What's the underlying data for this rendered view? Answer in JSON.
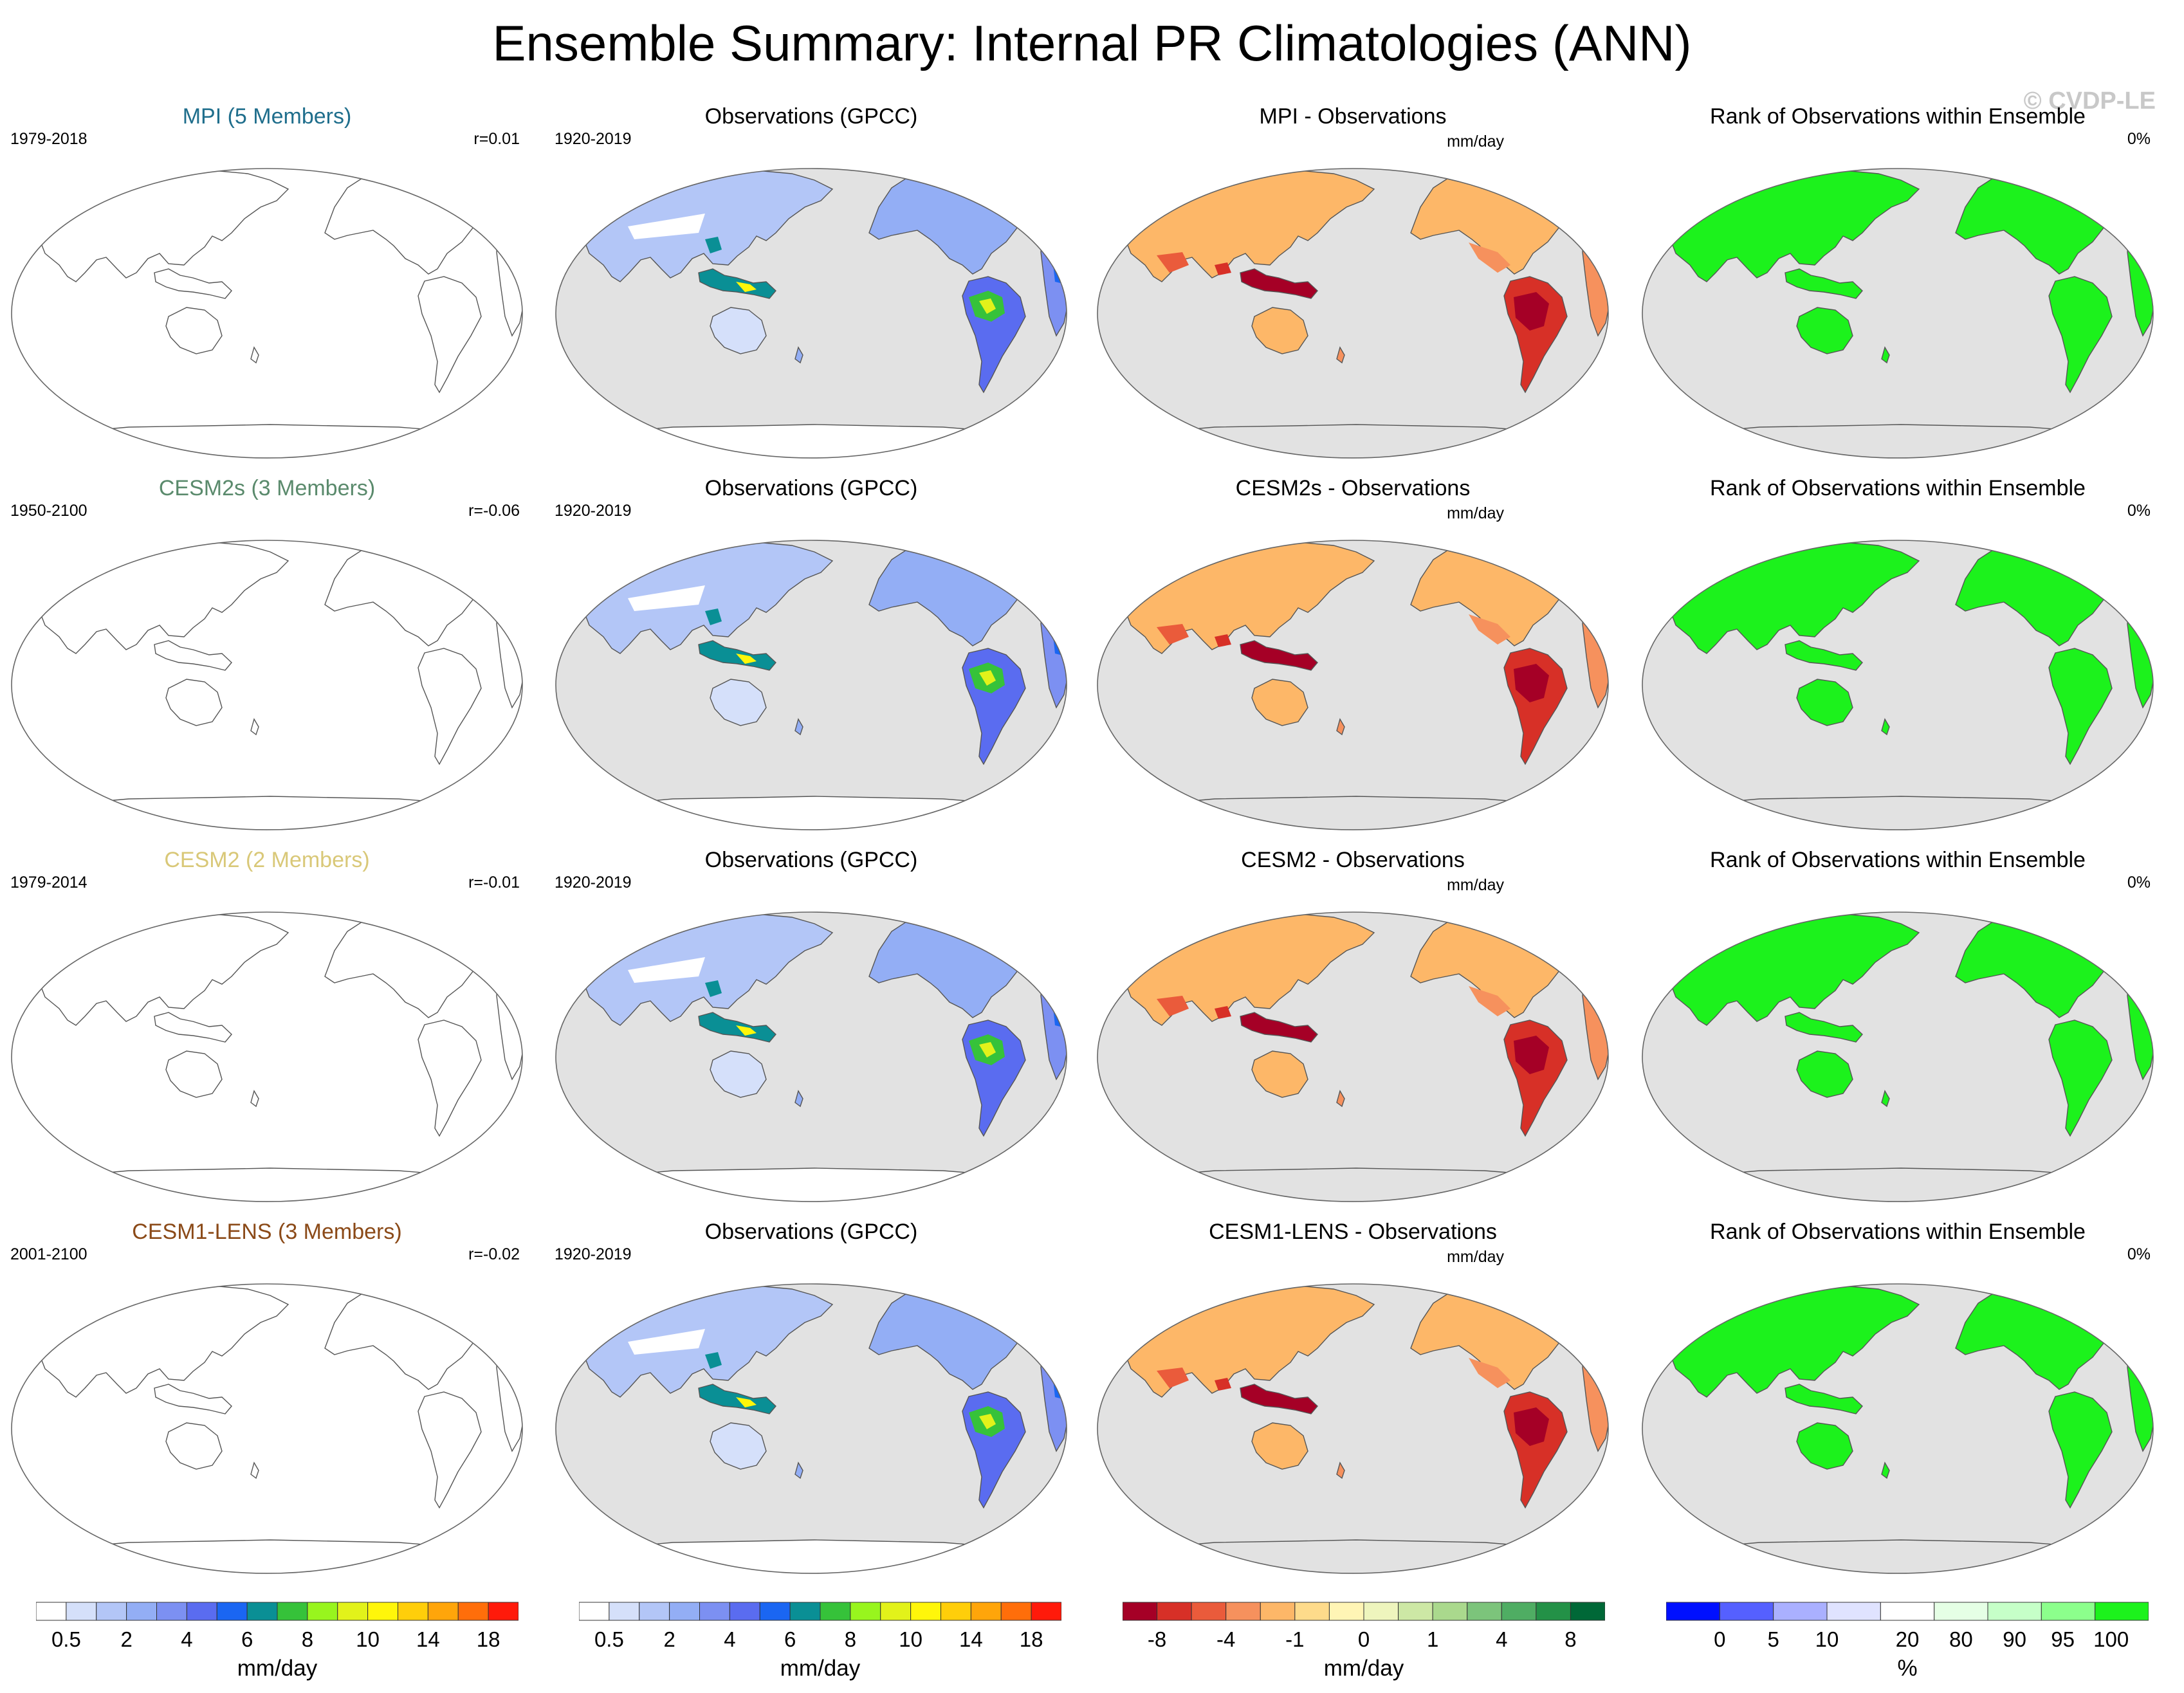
{
  "figure": {
    "title": "Ensemble Summary: Internal PR Climatologies (ANN)",
    "watermark": "© CVDP-LE"
  },
  "colors": {
    "land_fill_ocean": "#e2e2e2",
    "coast": "#555555",
    "obs_palette": [
      "#ffffff",
      "#d5e0fa",
      "#b3c6f7",
      "#93aef5",
      "#7c90f2",
      "#5a6cf0",
      "#1a66f2",
      "#0a8f95",
      "#36c23a",
      "#98f51e",
      "#e2f21a",
      "#fff60a",
      "#ffce0a",
      "#ffa50a",
      "#ff6e0a",
      "#ff1a0a"
    ],
    "diff_palette": [
      "#a50026",
      "#d73027",
      "#ea5b3b",
      "#f6915d",
      "#fdb768",
      "#fedb8b",
      "#fff5b5",
      "#eef5bd",
      "#cde8a5",
      "#aad98d",
      "#7cc47b",
      "#4fad63",
      "#239147",
      "#006837"
    ],
    "rank_palette": [
      "#0010ff",
      "#5560ff",
      "#aab0ff",
      "#e0e3ff",
      "#ffffff",
      "#e5ffe5",
      "#c6ffc8",
      "#8cff8c",
      "#1cf21c"
    ]
  },
  "rows": [
    {
      "model": {
        "title": "MPI (5 Members)",
        "title_color": "#1f6e8c",
        "years": "1979-2018",
        "r": "r=0.01"
      },
      "obs": {
        "title": "Observations (GPCC)",
        "years": "1920-2019"
      },
      "diff": {
        "title": "MPI - Observations",
        "units": "mm/day"
      },
      "rank": {
        "title": "Rank of Observations within Ensemble",
        "pct": "0%"
      }
    },
    {
      "model": {
        "title": "CESM2s (3 Members)",
        "title_color": "#5a8a6c",
        "years": "1950-2100",
        "r": "r=-0.06"
      },
      "obs": {
        "title": "Observations (GPCC)",
        "years": "1920-2019"
      },
      "diff": {
        "title": "CESM2s - Observations",
        "units": "mm/day"
      },
      "rank": {
        "title": "Rank of Observations within Ensemble",
        "pct": "0%"
      }
    },
    {
      "model": {
        "title": "CESM2 (2 Members)",
        "title_color": "#d9c878",
        "years": "1979-2014",
        "r": "r=-0.01"
      },
      "obs": {
        "title": "Observations (GPCC)",
        "years": "1920-2019"
      },
      "diff": {
        "title": "CESM2 - Observations",
        "units": "mm/day"
      },
      "rank": {
        "title": "Rank of Observations within Ensemble",
        "pct": "0%"
      }
    },
    {
      "model": {
        "title": "CESM1-LENS (3 Members)",
        "title_color": "#8b4a18",
        "years": "2001-2100",
        "r": "r=-0.02"
      },
      "obs": {
        "title": "Observations (GPCC)",
        "years": "1920-2019"
      },
      "diff": {
        "title": "CESM1-LENS - Observations",
        "units": "mm/day"
      },
      "rank": {
        "title": "Rank of Observations within Ensemble",
        "pct": "0%"
      }
    }
  ],
  "colorbars": [
    {
      "units": "mm/day",
      "labels": [
        "0.5",
        "2",
        "4",
        "6",
        "8",
        "10",
        "14",
        "18"
      ]
    },
    {
      "units": "mm/day",
      "labels": [
        "0.5",
        "2",
        "4",
        "6",
        "8",
        "10",
        "14",
        "18"
      ]
    },
    {
      "units": "mm/day",
      "labels": [
        "-8",
        "-4",
        "-1",
        "0",
        "1",
        "4",
        "8"
      ]
    },
    {
      "units": "%",
      "labels": [
        "0",
        "5",
        "10",
        "20",
        "80",
        "90",
        "95",
        "100"
      ]
    }
  ]
}
